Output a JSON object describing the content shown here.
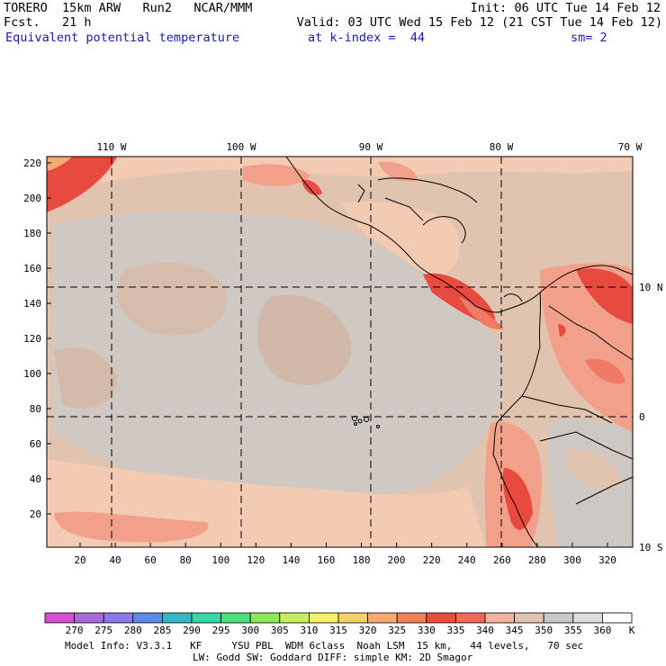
{
  "header": {
    "model": "TORERO",
    "resolution": "15km ARW",
    "run": "Run2",
    "org": "NCAR/MMM",
    "init": "Init: 06 UTC Tue 14 Feb 12",
    "fcst_label": "Fcst.",
    "fcst_value": "21 h",
    "valid": "Valid: 03 UTC Wed 15 Feb 12 (21 CST Tue 14 Feb 12)",
    "field": "Equivalent potential temperature",
    "level": "at k-index =  44",
    "smoothing": "sm= 2"
  },
  "map": {
    "x_axis_ticks": [
      "20",
      "40",
      "60",
      "80",
      "100",
      "120",
      "140",
      "160",
      "180",
      "200",
      "220",
      "240",
      "260",
      "280",
      "300",
      "320"
    ],
    "y_axis_ticks": [
      "20",
      "40",
      "60",
      "80",
      "100",
      "120",
      "140",
      "160",
      "180",
      "200",
      "220"
    ],
    "lon_labels": [
      "110 W",
      "100 W",
      "90 W",
      "80 W",
      "70 W"
    ],
    "lat_labels": [
      "10 N",
      "0",
      "10 S"
    ],
    "background_color": "#e0c4b0",
    "colors": {
      "cool": "#c9c9c9",
      "warm": "#f3cbb2",
      "hot": "#f2a08a",
      "hotter": "#f07a63",
      "hottest": "#e84a40",
      "border": "#000000"
    }
  },
  "colorbar": {
    "labels": [
      "270",
      "275",
      "280",
      "285",
      "290",
      "295",
      "300",
      "305",
      "310",
      "315",
      "320",
      "325",
      "330",
      "335",
      "340",
      "345",
      "350",
      "355",
      "360"
    ],
    "unit": "K",
    "colors": [
      "#d250d2",
      "#a66bd6",
      "#8a78e6",
      "#5b8ce6",
      "#36b7c6",
      "#36d7a6",
      "#4ce07a",
      "#8be85c",
      "#c7ee62",
      "#f5f06a",
      "#f5cf6a",
      "#f5a974",
      "#f28058",
      "#ea4e3c",
      "#f06a58",
      "#f3b39c",
      "#e0c4b0",
      "#c9c9c9",
      "#dcdcdc",
      "#ffffff"
    ]
  },
  "footer": {
    "line1": "Model Info: V3.3.1   KF     YSU PBL  WDM 6class  Noah LSM  15 km,   44 levels,   70 sec",
    "line2": "LW: Godd SW: Goddard DIFF: simple KM: 2D Smagor"
  }
}
